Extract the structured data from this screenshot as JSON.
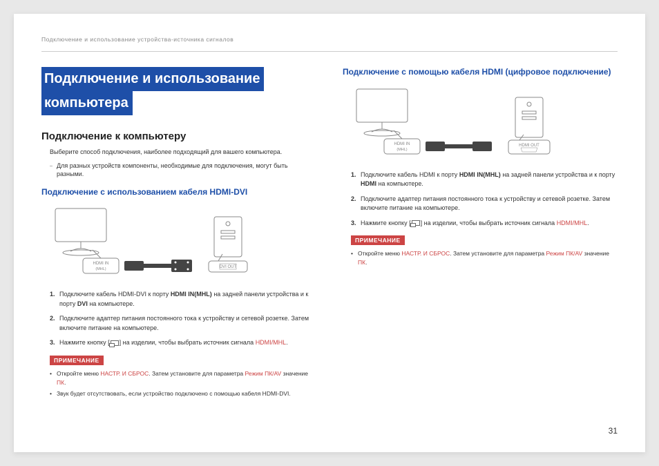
{
  "header": "Подключение и использование устройства-источника сигналов",
  "mainTitle": {
    "line1": "Подключение и использование",
    "line2": "компьютера"
  },
  "subtitle1": "Подключение к компьютеру",
  "intro": "Выберите способ подключения, наиболее подходящий для вашего компьютера.",
  "introBullet": "Для разных устройств компоненты, необходимые для подключения, могут быть разными.",
  "section1": "Подключение с использованием кабеля HDMI-DVI",
  "diagram1": {
    "portLeft1": "HDMI IN",
    "portLeft2": "(MHL)",
    "portRight": "DVI OUT"
  },
  "steps1": [
    {
      "n": "1.",
      "pre": "Подключите кабель HDMI-DVI к порту ",
      "b1": "HDMI IN(MHL)",
      "mid": " на задней панели устройства и к порту ",
      "b2": "DVI",
      "post": " на компьютере."
    },
    {
      "n": "2.",
      "pre": "Подключите адаптер питания постоянного тока к устройству и сетевой розетке. Затем включите питание на компьютере.",
      "b1": "",
      "mid": "",
      "b2": "",
      "post": ""
    },
    {
      "n": "3.",
      "pre": "Нажмите кнопку [",
      "icon": true,
      "mid2": "] на изделии, чтобы выбрать источник сигнала ",
      "link": "HDMI/MHL",
      "post2": "."
    }
  ],
  "noteLabel": "ПРИМЕЧАНИЕ",
  "notes1": [
    {
      "pre": "Откройте меню ",
      "l1": "НАСТР. И СБРОС",
      "mid": ". Затем установите для параметра ",
      "l2": "Режим ПК/AV",
      "mid2": " значение ",
      "l3": "ПК",
      "post": "."
    },
    {
      "pre": "Звук будет отсутствовать, если устройство подключено с помощью кабеля HDMI-DVI."
    }
  ],
  "section2": "Подключение с помощью кабеля HDMI (цифровое подключение)",
  "diagram2": {
    "portLeft1": "HDMI IN",
    "portLeft2": "(MHL)",
    "portRight": "HDMI OUT"
  },
  "steps2": [
    {
      "n": "1.",
      "pre": "Подключите кабель HDMI к порту ",
      "b1": "HDMI IN(MHL)",
      "mid": " на задней панели устройства и к порту ",
      "b2": "HDMI",
      "post": " на компьютере."
    },
    {
      "n": "2.",
      "pre": "Подключите адаптер питания постоянного тока к устройству и сетевой розетке. Затем включите питание на компьютере.",
      "b1": "",
      "mid": "",
      "b2": "",
      "post": ""
    },
    {
      "n": "3.",
      "pre": "Нажмите кнопку [",
      "icon": true,
      "mid2": "] на изделии, чтобы выбрать источник сигнала ",
      "link": "HDMI/MHL",
      "post2": "."
    }
  ],
  "notes2": [
    {
      "pre": "Откройте меню ",
      "l1": "НАСТР. И СБРОС",
      "mid": ". Затем установите для параметра ",
      "l2": "Режим ПК/AV",
      "mid2": " значение ",
      "l3": "ПК",
      "post": "."
    }
  ],
  "pageNum": "31",
  "colors": {
    "accent": "#1e4fa8",
    "red": "#c44"
  }
}
